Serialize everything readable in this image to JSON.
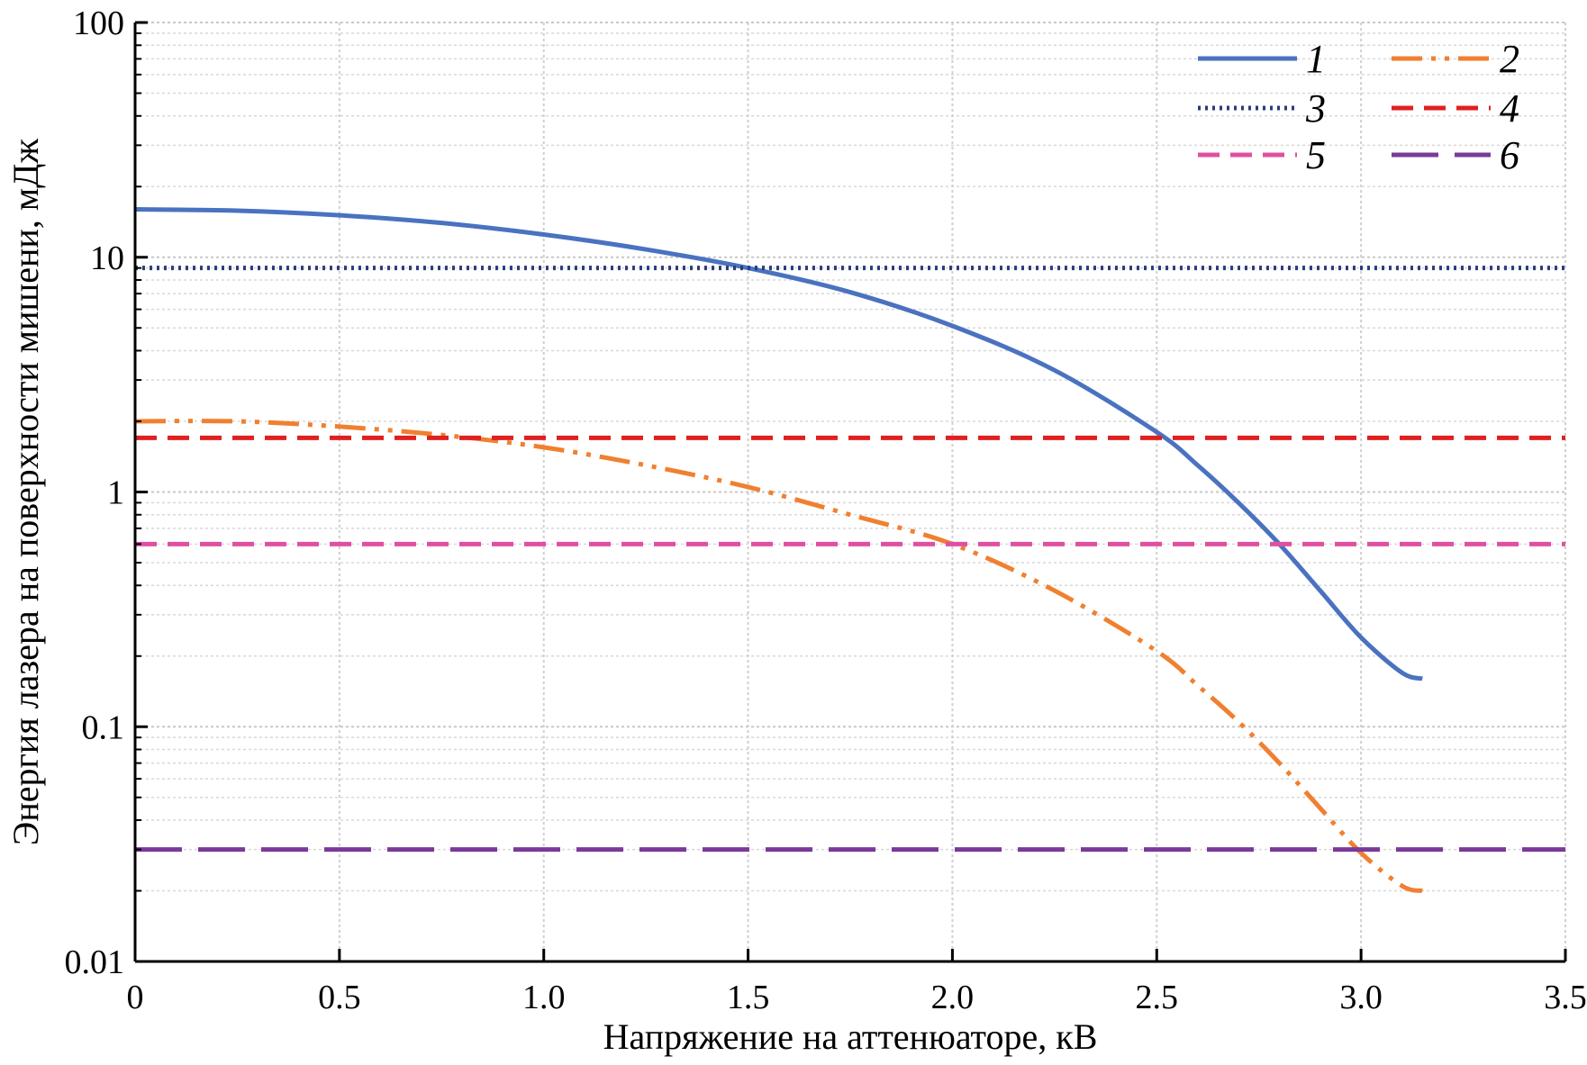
{
  "chart_data": {
    "type": "line",
    "xlabel": "Напряжение на аттенюаторе, кВ",
    "ylabel": "Энергия лазера на поверхности мишени, мДж",
    "xlim": [
      0,
      3.5
    ],
    "ylim": [
      0.01,
      100
    ],
    "yscale": "log",
    "grid": true,
    "legend_position": "top-right",
    "x_ticks": [
      {
        "value": 0,
        "label": "0"
      },
      {
        "value": 0.5,
        "label": "0.5"
      },
      {
        "value": 1.0,
        "label": "1.0"
      },
      {
        "value": 1.5,
        "label": "1.5"
      },
      {
        "value": 2.0,
        "label": "2.0"
      },
      {
        "value": 2.5,
        "label": "2.5"
      },
      {
        "value": 3.0,
        "label": "3.0"
      },
      {
        "value": 3.5,
        "label": "3.5"
      }
    ],
    "y_ticks": [
      {
        "value": 0.01,
        "label": "0.01"
      },
      {
        "value": 0.1,
        "label": "0.1"
      },
      {
        "value": 1,
        "label": "1"
      },
      {
        "value": 10,
        "label": "10"
      },
      {
        "value": 100,
        "label": "100"
      }
    ],
    "series": [
      {
        "name": "1",
        "color": "#4a72c0",
        "style": "solid",
        "x": [
          0,
          0.25,
          0.5,
          0.75,
          1.0,
          1.25,
          1.5,
          1.75,
          2.0,
          2.25,
          2.5,
          2.6,
          2.7,
          2.8,
          2.9,
          3.0,
          3.1,
          3.15
        ],
        "y": [
          16,
          15.8,
          15.1,
          14,
          12.5,
          10.8,
          9.0,
          7.1,
          5.1,
          3.3,
          1.8,
          1.3,
          0.9,
          0.6,
          0.38,
          0.24,
          0.17,
          0.16
        ]
      },
      {
        "name": "2",
        "color": "#f08030",
        "style": "dash-dot-dot",
        "x": [
          0,
          0.25,
          0.5,
          0.75,
          1.0,
          1.25,
          1.5,
          1.75,
          2.0,
          2.25,
          2.5,
          2.6,
          2.7,
          2.8,
          2.9,
          3.0,
          3.1,
          3.15
        ],
        "y": [
          2.0,
          2.0,
          1.9,
          1.75,
          1.55,
          1.3,
          1.05,
          0.8,
          0.6,
          0.38,
          0.21,
          0.15,
          0.105,
          0.07,
          0.045,
          0.029,
          0.021,
          0.02
        ]
      },
      {
        "name": "3",
        "color": "#2a3d7c",
        "style": "dotted",
        "x": [
          0,
          3.5
        ],
        "y": [
          9,
          9
        ]
      },
      {
        "name": "4",
        "color": "#e02020",
        "style": "dashed",
        "x": [
          0,
          3.5
        ],
        "y": [
          1.7,
          1.7
        ]
      },
      {
        "name": "5",
        "color": "#e050a0",
        "style": "dashed",
        "x": [
          0,
          3.5
        ],
        "y": [
          0.6,
          0.6
        ]
      },
      {
        "name": "6",
        "color": "#7b3a9a",
        "style": "long-dash",
        "x": [
          0,
          3.5
        ],
        "y": [
          0.03,
          0.03
        ]
      }
    ]
  }
}
